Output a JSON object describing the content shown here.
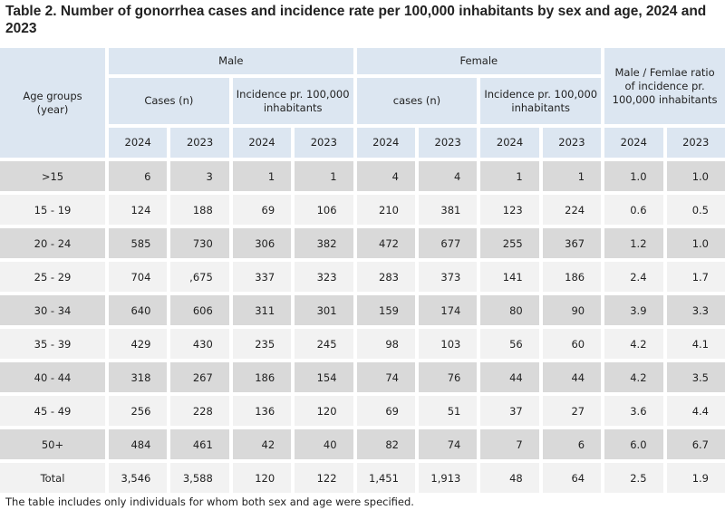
{
  "title": "Table 2. Number of gonorrhea cases and incidence rate per 100,000 inhabitants by sex and age, 2024 and 2023",
  "headers": {
    "age": "Age groups (year)",
    "male": "Male",
    "female": "Female",
    "ratio": "Male / Femlae ratio of incidence pr. 100,000 inhabitants",
    "male_cases": "Cases (n)",
    "male_inc": "Incidence pr. 100,000 inhabitants",
    "female_cases": "cases (n)",
    "female_inc": "Incidence pr. 100,000 inhabitants",
    "years": [
      "2024",
      "2023",
      "2024",
      "2023",
      "2024",
      "2023",
      "2024",
      "2023",
      "2024",
      "2023"
    ]
  },
  "rows": [
    [
      ">15",
      "6",
      "3",
      "1",
      "1",
      "4",
      "4",
      "1",
      "1",
      "1.0",
      "1.0"
    ],
    [
      "15 - 19",
      "124",
      "188",
      "69",
      "106",
      "210",
      "381",
      "123",
      "224",
      "0.6",
      "0.5"
    ],
    [
      "20 - 24",
      "585",
      "730",
      "306",
      "382",
      "472",
      "677",
      "255",
      "367",
      "1.2",
      "1.0"
    ],
    [
      "25 - 29",
      "704",
      ",675",
      "337",
      "323",
      "283",
      "373",
      "141",
      "186",
      "2.4",
      "1.7"
    ],
    [
      "30 - 34",
      "640",
      "606",
      "311",
      "301",
      "159",
      "174",
      "80",
      "90",
      "3.9",
      "3.3"
    ],
    [
      "35 - 39",
      "429",
      "430",
      "235",
      "245",
      "98",
      "103",
      "56",
      "60",
      "4.2",
      "4.1"
    ],
    [
      "40 - 44",
      "318",
      "267",
      "186",
      "154",
      "74",
      "76",
      "44",
      "44",
      "4.2",
      "3.5"
    ],
    [
      "45 - 49",
      "256",
      "228",
      "136",
      "120",
      "69",
      "51",
      "37",
      "27",
      "3.6",
      "4.4"
    ],
    [
      "50+",
      "484",
      "461",
      "42",
      "40",
      "82",
      "74",
      "7",
      "6",
      "6.0",
      "6.7"
    ],
    [
      "Total",
      "3,546",
      "3,588",
      "120",
      "122",
      "1,451",
      "1,913",
      "48",
      "64",
      "2.5",
      "1.9"
    ]
  ],
  "footnote": "The table includes only individuals for whom both sex and age were specified."
}
